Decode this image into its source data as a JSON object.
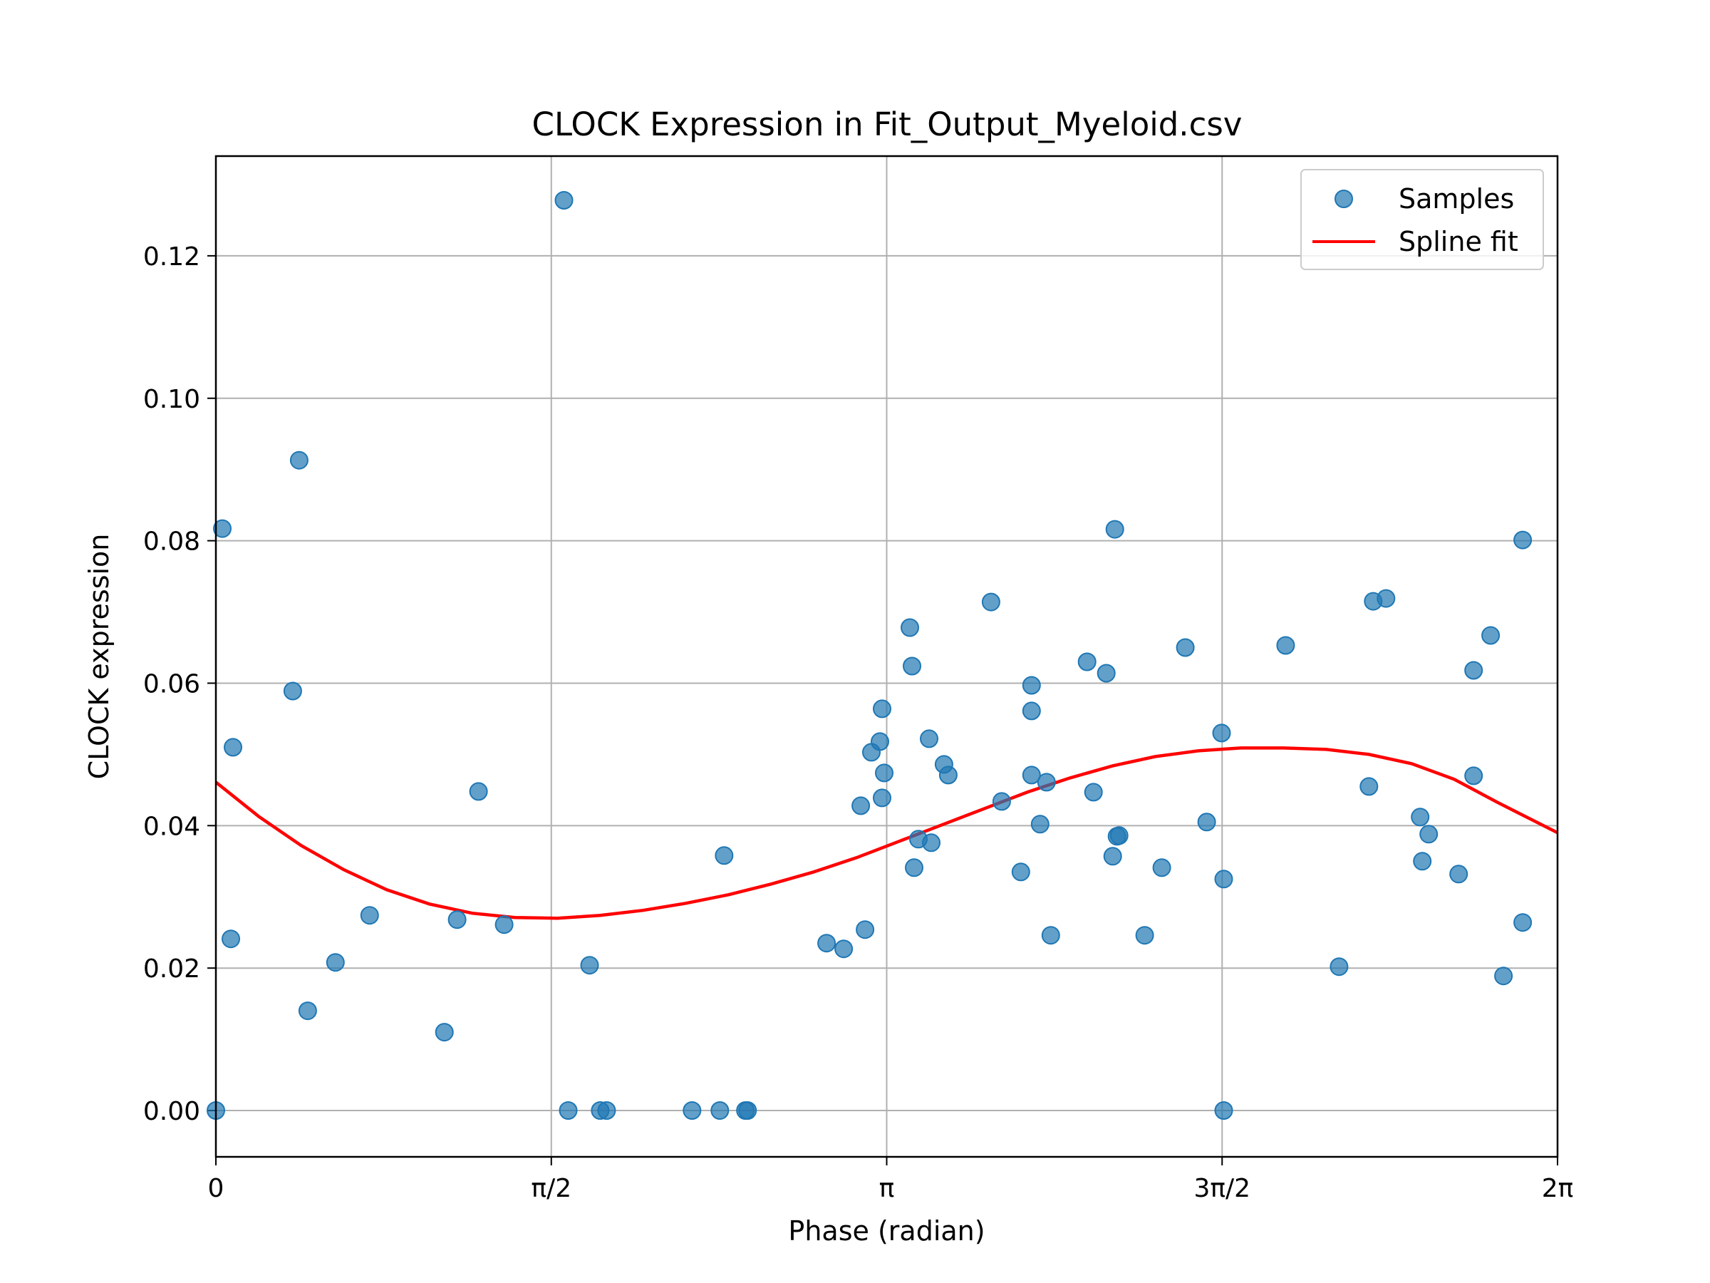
{
  "chart_data": {
    "type": "scatter",
    "title": "CLOCK Expression in Fit_Output_Myeloid.csv",
    "xlabel": "Phase (radian)",
    "ylabel": "CLOCK expression",
    "xlim": [
      0,
      6.2832
    ],
    "ylim": [
      -0.0065,
      0.134
    ],
    "x_ticks": [
      {
        "value": 0,
        "label": "0"
      },
      {
        "value": 1.5708,
        "label": "π/2"
      },
      {
        "value": 3.1416,
        "label": "π"
      },
      {
        "value": 4.7124,
        "label": "3π/2"
      },
      {
        "value": 6.2832,
        "label": "2π"
      }
    ],
    "y_ticks": [
      {
        "value": 0.0,
        "label": "0.00"
      },
      {
        "value": 0.02,
        "label": "0.02"
      },
      {
        "value": 0.04,
        "label": "0.04"
      },
      {
        "value": 0.06,
        "label": "0.06"
      },
      {
        "value": 0.08,
        "label": "0.08"
      },
      {
        "value": 0.1,
        "label": "0.10"
      },
      {
        "value": 0.12,
        "label": "0.12"
      }
    ],
    "grid": true,
    "legend_position": "top-right",
    "series": [
      {
        "name": "Samples",
        "kind": "scatter",
        "color": "#1f77b4",
        "points": [
          [
            0.0,
            0.0
          ],
          [
            0.03,
            0.0817
          ],
          [
            0.07,
            0.0241
          ],
          [
            0.08,
            0.051
          ],
          [
            0.36,
            0.0589
          ],
          [
            0.39,
            0.0913
          ],
          [
            0.43,
            0.014
          ],
          [
            0.56,
            0.0208
          ],
          [
            0.72,
            0.0274
          ],
          [
            1.07,
            0.011
          ],
          [
            1.13,
            0.0268
          ],
          [
            1.23,
            0.0448
          ],
          [
            1.35,
            0.0261
          ],
          [
            1.63,
            0.1278
          ],
          [
            1.65,
            0.0
          ],
          [
            1.75,
            0.0204
          ],
          [
            1.8,
            0.0
          ],
          [
            1.83,
            0.0
          ],
          [
            2.23,
            0.0
          ],
          [
            2.36,
            0.0
          ],
          [
            2.38,
            0.0358
          ],
          [
            2.48,
            0.0
          ],
          [
            2.49,
            0.0
          ],
          [
            2.86,
            0.0235
          ],
          [
            2.94,
            0.0227
          ],
          [
            3.02,
            0.0428
          ],
          [
            3.04,
            0.0254
          ],
          [
            3.07,
            0.0503
          ],
          [
            3.11,
            0.0518
          ],
          [
            3.12,
            0.0439
          ],
          [
            3.12,
            0.0564
          ],
          [
            3.13,
            0.0474
          ],
          [
            3.25,
            0.0678
          ],
          [
            3.26,
            0.0624
          ],
          [
            3.27,
            0.0341
          ],
          [
            3.29,
            0.0381
          ],
          [
            3.34,
            0.0522
          ],
          [
            3.35,
            0.0376
          ],
          [
            3.41,
            0.0486
          ],
          [
            3.43,
            0.0471
          ],
          [
            3.63,
            0.0714
          ],
          [
            3.68,
            0.0434
          ],
          [
            3.77,
            0.0335
          ],
          [
            3.82,
            0.0597
          ],
          [
            3.82,
            0.0471
          ],
          [
            3.82,
            0.0561
          ],
          [
            3.86,
            0.0402
          ],
          [
            3.89,
            0.0461
          ],
          [
            3.91,
            0.0246
          ],
          [
            4.08,
            0.063
          ],
          [
            4.11,
            0.0447
          ],
          [
            4.17,
            0.0614
          ],
          [
            4.2,
            0.0357
          ],
          [
            4.21,
            0.0816
          ],
          [
            4.22,
            0.0385
          ],
          [
            4.23,
            0.0386
          ],
          [
            4.35,
            0.0246
          ],
          [
            4.43,
            0.0341
          ],
          [
            4.54,
            0.065
          ],
          [
            4.64,
            0.0405
          ],
          [
            4.71,
            0.053
          ],
          [
            4.72,
            0.0325
          ],
          [
            4.72,
            0.0
          ],
          [
            5.01,
            0.0653
          ],
          [
            5.26,
            0.0202
          ],
          [
            5.4,
            0.0455
          ],
          [
            5.42,
            0.0715
          ],
          [
            5.48,
            0.0719
          ],
          [
            5.64,
            0.0412
          ],
          [
            5.65,
            0.035
          ],
          [
            5.68,
            0.0388
          ],
          [
            5.82,
            0.0332
          ],
          [
            5.89,
            0.0618
          ],
          [
            5.89,
            0.047
          ],
          [
            5.97,
            0.0667
          ],
          [
            6.03,
            0.0189
          ],
          [
            6.12,
            0.0264
          ],
          [
            6.12,
            0.0801
          ]
        ]
      },
      {
        "name": "Spline fit",
        "kind": "line",
        "color": "#ff0000",
        "points": [
          [
            0.0,
            0.0461
          ],
          [
            0.2,
            0.0413
          ],
          [
            0.4,
            0.0372
          ],
          [
            0.6,
            0.0338
          ],
          [
            0.8,
            0.031
          ],
          [
            1.0,
            0.029
          ],
          [
            1.2,
            0.0277
          ],
          [
            1.4,
            0.0271
          ],
          [
            1.6,
            0.027
          ],
          [
            1.8,
            0.0274
          ],
          [
            2.0,
            0.0281
          ],
          [
            2.2,
            0.0291
          ],
          [
            2.4,
            0.0303
          ],
          [
            2.6,
            0.0318
          ],
          [
            2.8,
            0.0335
          ],
          [
            3.0,
            0.0355
          ],
          [
            3.2,
            0.0378
          ],
          [
            3.4,
            0.0401
          ],
          [
            3.6,
            0.0424
          ],
          [
            3.8,
            0.0447
          ],
          [
            4.0,
            0.0467
          ],
          [
            4.2,
            0.0484
          ],
          [
            4.4,
            0.0497
          ],
          [
            4.6,
            0.0505
          ],
          [
            4.8,
            0.0509
          ],
          [
            5.0,
            0.0509
          ],
          [
            5.2,
            0.0507
          ],
          [
            5.4,
            0.05
          ],
          [
            5.6,
            0.0487
          ],
          [
            5.8,
            0.0465
          ],
          [
            6.0,
            0.0433
          ],
          [
            6.2832,
            0.039
          ]
        ]
      }
    ]
  }
}
